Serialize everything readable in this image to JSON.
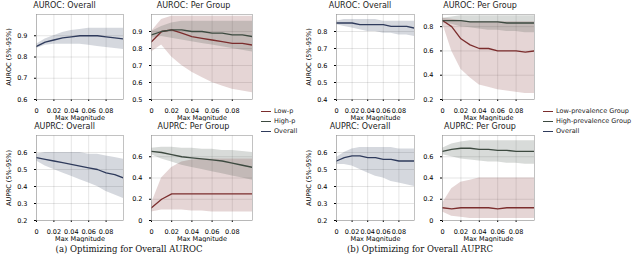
{
  "chart_data": [
    {
      "type": "line",
      "title": "(a) Optimizing for Overall AUROC",
      "legend": "right",
      "x": [
        0,
        0.01,
        0.02,
        0.03,
        0.04,
        0.05,
        0.06,
        0.07,
        0.08,
        0.09,
        0.1
      ],
      "xlim": [
        0,
        0.1
      ],
      "xticks": [
        0,
        0.02,
        0.04,
        0.06,
        0.08
      ],
      "xlabel": "Max Magnitude",
      "grid": true,
      "subplots": [
        {
          "title": "AUROC: Overall",
          "ylabel": "AUROC (5%-95%)",
          "ylim": [
            0.6,
            1.0
          ],
          "yticks": [
            0.6,
            0.7,
            0.8,
            0.9
          ],
          "series": [
            {
              "name": "Overall",
              "color": "#2f3b5c",
              "values": [
                0.85,
                0.87,
                0.88,
                0.89,
                0.895,
                0.9,
                0.9,
                0.9,
                0.895,
                0.89,
                0.885
              ],
              "lower": [
                0.84,
                0.855,
                0.86,
                0.86,
                0.86,
                0.86,
                0.855,
                0.85,
                0.845,
                0.84,
                0.835
              ],
              "upper": [
                0.86,
                0.885,
                0.9,
                0.915,
                0.925,
                0.93,
                0.935,
                0.935,
                0.935,
                0.935,
                0.935
              ]
            }
          ]
        },
        {
          "title": "AUROC: Per Group",
          "ylim": [
            0.5,
            1.0
          ],
          "yticks": [
            0.5,
            0.6,
            0.7,
            0.8,
            0.9
          ],
          "series": [
            {
              "name": "Low-p",
              "color": "#7b2d2d",
              "values": [
                0.84,
                0.9,
                0.91,
                0.89,
                0.87,
                0.86,
                0.85,
                0.84,
                0.83,
                0.83,
                0.82
              ],
              "lower": [
                0.78,
                0.82,
                0.75,
                0.7,
                0.66,
                0.63,
                0.6,
                0.58,
                0.56,
                0.55,
                0.54
              ],
              "upper": [
                0.9,
                0.97,
                0.99,
                0.99,
                0.99,
                0.99,
                0.99,
                0.99,
                0.99,
                0.99,
                0.99
              ]
            },
            {
              "name": "High-p",
              "color": "#3d4a40",
              "values": [
                0.88,
                0.9,
                0.91,
                0.91,
                0.9,
                0.9,
                0.89,
                0.89,
                0.88,
                0.88,
                0.87
              ],
              "lower": [
                0.86,
                0.87,
                0.86,
                0.85,
                0.84,
                0.83,
                0.82,
                0.81,
                0.8,
                0.79,
                0.78
              ],
              "upper": [
                0.9,
                0.93,
                0.95,
                0.96,
                0.96,
                0.96,
                0.96,
                0.96,
                0.96,
                0.96,
                0.96
              ]
            }
          ]
        },
        {
          "title": "AUPRC: Overall",
          "ylabel": "AUPRC (5%-95%)",
          "ylim": [
            0.2,
            0.7
          ],
          "yticks": [
            0.2,
            0.3,
            0.4,
            0.5,
            0.6
          ],
          "series": [
            {
              "name": "Overall",
              "color": "#2f3b5c",
              "values": [
                0.57,
                0.56,
                0.55,
                0.54,
                0.53,
                0.52,
                0.51,
                0.5,
                0.48,
                0.47,
                0.45
              ],
              "lower": [
                0.55,
                0.52,
                0.5,
                0.48,
                0.46,
                0.44,
                0.42,
                0.4,
                0.37,
                0.35,
                0.33
              ],
              "upper": [
                0.59,
                0.6,
                0.6,
                0.6,
                0.6,
                0.6,
                0.59,
                0.59,
                0.58,
                0.57,
                0.56
              ]
            }
          ]
        },
        {
          "title": "AUPRC: Per Group",
          "ylim": [
            0,
            0.8
          ],
          "yticks": [
            0,
            0.2,
            0.4,
            0.6
          ],
          "series": [
            {
              "name": "Low-p",
              "color": "#7b2d2d",
              "values": [
                0.12,
                0.2,
                0.25,
                0.25,
                0.25,
                0.25,
                0.25,
                0.25,
                0.25,
                0.25,
                0.25
              ],
              "lower": [
                0.08,
                0.1,
                0.1,
                0.1,
                0.09,
                0.09,
                0.08,
                0.08,
                0.08,
                0.08,
                0.08
              ],
              "upper": [
                0.16,
                0.4,
                0.5,
                0.55,
                0.57,
                0.58,
                0.58,
                0.58,
                0.58,
                0.58,
                0.58
              ]
            },
            {
              "name": "High-p",
              "color": "#3d4a40",
              "values": [
                0.65,
                0.64,
                0.62,
                0.6,
                0.59,
                0.58,
                0.57,
                0.56,
                0.54,
                0.52,
                0.5
              ],
              "lower": [
                0.62,
                0.58,
                0.55,
                0.52,
                0.5,
                0.48,
                0.46,
                0.44,
                0.42,
                0.4,
                0.38
              ],
              "upper": [
                0.68,
                0.69,
                0.69,
                0.68,
                0.68,
                0.67,
                0.67,
                0.66,
                0.66,
                0.65,
                0.64
              ]
            }
          ]
        }
      ]
    },
    {
      "type": "line",
      "title": "(b) Optimizing for Overall AUPRC",
      "legend": "right",
      "x": [
        0,
        0.01,
        0.02,
        0.03,
        0.04,
        0.05,
        0.06,
        0.07,
        0.08,
        0.09,
        0.1
      ],
      "xlim": [
        0,
        0.1
      ],
      "xticks": [
        0,
        0.02,
        0.04,
        0.06,
        0.08
      ],
      "xlabel": "Max Magnitude",
      "grid": true,
      "subplots": [
        {
          "title": "AUROC: Overall",
          "ylabel": "AUROC (5%-95%)",
          "ylim": [
            0.4,
            0.9
          ],
          "yticks": [
            0.4,
            0.5,
            0.6,
            0.7,
            0.8
          ],
          "series": [
            {
              "name": "Overall",
              "color": "#2f3b5c",
              "values": [
                0.85,
                0.85,
                0.85,
                0.84,
                0.84,
                0.84,
                0.84,
                0.83,
                0.83,
                0.83,
                0.82
              ],
              "lower": [
                0.84,
                0.83,
                0.82,
                0.81,
                0.8,
                0.8,
                0.79,
                0.79,
                0.78,
                0.78,
                0.77
              ],
              "upper": [
                0.86,
                0.87,
                0.87,
                0.87,
                0.87,
                0.87,
                0.86,
                0.86,
                0.86,
                0.86,
                0.86
              ]
            }
          ]
        },
        {
          "title": "AUROC: Per Group",
          "ylim": [
            0.2,
            0.9
          ],
          "yticks": [
            0.2,
            0.4,
            0.6,
            0.8
          ],
          "series": [
            {
              "name": "Low-prevalence Group",
              "color": "#7b2d2d",
              "values": [
                0.85,
                0.8,
                0.7,
                0.65,
                0.62,
                0.62,
                0.6,
                0.6,
                0.6,
                0.59,
                0.6
              ],
              "lower": [
                0.83,
                0.6,
                0.45,
                0.38,
                0.32,
                0.3,
                0.28,
                0.27,
                0.26,
                0.25,
                0.25
              ],
              "upper": [
                0.87,
                0.86,
                0.85,
                0.84,
                0.84,
                0.84,
                0.84,
                0.84,
                0.84,
                0.84,
                0.84
              ]
            },
            {
              "name": "High-prevalence Group",
              "color": "#3d4a40",
              "values": [
                0.85,
                0.85,
                0.85,
                0.84,
                0.84,
                0.84,
                0.84,
                0.83,
                0.83,
                0.83,
                0.83
              ],
              "lower": [
                0.83,
                0.82,
                0.8,
                0.79,
                0.78,
                0.77,
                0.77,
                0.76,
                0.76,
                0.75,
                0.75
              ],
              "upper": [
                0.87,
                0.88,
                0.89,
                0.89,
                0.89,
                0.89,
                0.89,
                0.89,
                0.89,
                0.89,
                0.89
              ]
            }
          ]
        },
        {
          "title": "AUPRC: Overall",
          "ylabel": "AUPRC (5%-95%)",
          "ylim": [
            0.2,
            0.7
          ],
          "yticks": [
            0.2,
            0.3,
            0.4,
            0.5,
            0.6
          ],
          "series": [
            {
              "name": "Overall",
              "color": "#2f3b5c",
              "values": [
                0.55,
                0.57,
                0.58,
                0.58,
                0.57,
                0.57,
                0.56,
                0.56,
                0.55,
                0.55,
                0.55
              ],
              "lower": [
                0.53,
                0.53,
                0.52,
                0.5,
                0.48,
                0.46,
                0.45,
                0.43,
                0.42,
                0.41,
                0.4
              ],
              "upper": [
                0.57,
                0.6,
                0.62,
                0.63,
                0.63,
                0.63,
                0.63,
                0.63,
                0.62,
                0.62,
                0.62
              ]
            }
          ]
        },
        {
          "title": "AUPRC: Per Group",
          "ylim": [
            0,
            0.8
          ],
          "yticks": [
            0,
            0.2,
            0.4,
            0.6
          ],
          "series": [
            {
              "name": "Low-prevalence Group",
              "color": "#7b2d2d",
              "values": [
                0.12,
                0.11,
                0.12,
                0.12,
                0.12,
                0.12,
                0.11,
                0.12,
                0.12,
                0.12,
                0.12
              ],
              "lower": [
                0.08,
                0.04,
                0.03,
                0.02,
                0.02,
                0.02,
                0.02,
                0.02,
                0.02,
                0.02,
                0.02
              ],
              "upper": [
                0.16,
                0.3,
                0.36,
                0.38,
                0.4,
                0.4,
                0.4,
                0.4,
                0.4,
                0.4,
                0.4
              ]
            },
            {
              "name": "High-prevalence Group",
              "color": "#3d4a40",
              "values": [
                0.65,
                0.67,
                0.68,
                0.68,
                0.67,
                0.67,
                0.66,
                0.66,
                0.65,
                0.65,
                0.65
              ],
              "lower": [
                0.62,
                0.6,
                0.58,
                0.57,
                0.56,
                0.55,
                0.55,
                0.54,
                0.54,
                0.53,
                0.53
              ],
              "upper": [
                0.68,
                0.72,
                0.74,
                0.75,
                0.75,
                0.75,
                0.75,
                0.75,
                0.75,
                0.75,
                0.75
              ]
            }
          ]
        }
      ]
    }
  ]
}
